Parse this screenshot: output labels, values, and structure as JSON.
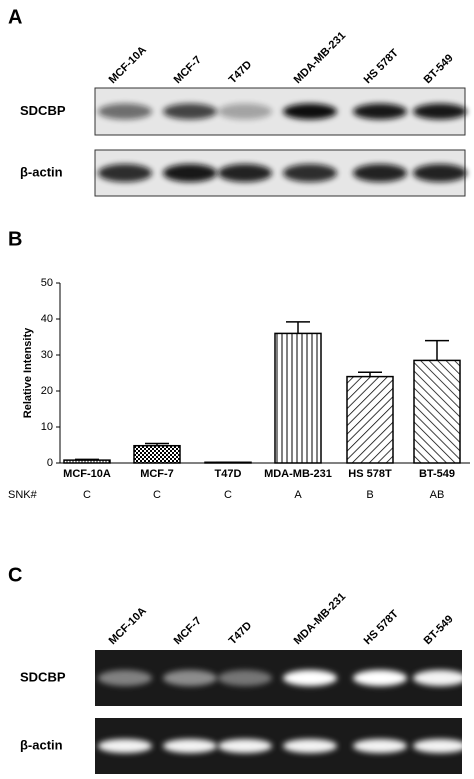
{
  "panel_a": {
    "label": "A",
    "lanes": [
      "MCF-10A",
      "MCF-7",
      "T47D",
      "MDA-MB-231",
      "HS 578T",
      "BT-549"
    ],
    "rows": [
      "SDCBP",
      "β-actin"
    ]
  },
  "chart_data": {
    "type": "bar",
    "panel_label": "B",
    "ylabel": "Relative Intensity",
    "categories": [
      "MCF-10A",
      "MCF-7",
      "T47D",
      "MDA-MB-231",
      "HS 578T",
      "BT-549"
    ],
    "values": [
      0.8,
      4.8,
      0.2,
      36,
      24,
      28.5
    ],
    "errors": [
      0.2,
      0.6,
      0,
      3.2,
      1.2,
      5.5
    ],
    "ylim": [
      0,
      50
    ],
    "yticks": [
      0,
      10,
      20,
      30,
      40,
      50
    ],
    "group_label": "SNK#",
    "groups": [
      "C",
      "C",
      "C",
      "A",
      "B",
      "AB"
    ]
  },
  "panel_c": {
    "label": "C",
    "lanes": [
      "MCF-10A",
      "MCF-7",
      "T47D",
      "MDA-MB-231",
      "HS 578T",
      "BT-549"
    ],
    "rows": [
      "SDCBP",
      "β-actin"
    ]
  }
}
